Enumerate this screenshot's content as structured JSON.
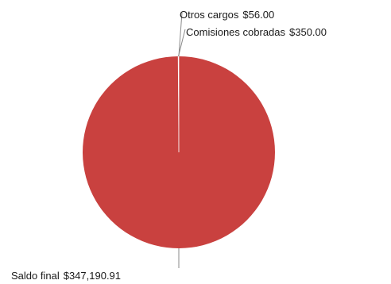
{
  "chart_data": {
    "type": "pie",
    "colors": [
      "#c9413f",
      "#d4d4d4",
      "#e6e6e6"
    ],
    "slices": [
      {
        "label": "Saldo final",
        "display": "$347,190.91",
        "value": 347190.91
      },
      {
        "label": "Comisiones cobradas",
        "display": "$350.00",
        "value": 350.0
      },
      {
        "label": "Otros cargos",
        "display": "$56.00",
        "value": 56.0
      }
    ],
    "legend": "none"
  }
}
